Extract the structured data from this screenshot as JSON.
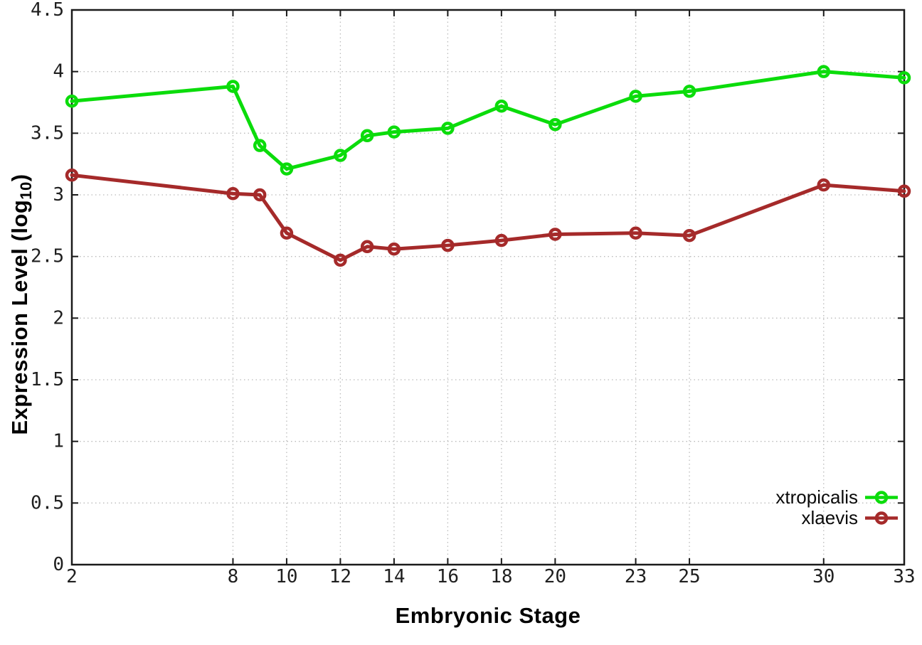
{
  "chart_data": {
    "type": "line",
    "title": "",
    "xlabel": "Embryonic Stage",
    "ylabel": "Expression Level (log10)",
    "ylabel_prefix": "Expression Level (log",
    "ylabel_subscript": "10",
    "ylabel_suffix": ")",
    "xlim": [
      2,
      33
    ],
    "ylim": [
      0,
      4.5
    ],
    "grid": true,
    "grid_style": "dotted",
    "legend_position": "bottom-right",
    "x_ticks": [
      2,
      8,
      10,
      12,
      14,
      16,
      18,
      20,
      23,
      25,
      30,
      33
    ],
    "x_tick_labels": [
      "2",
      "8",
      "10",
      "12",
      "14",
      "16",
      "18",
      "20",
      "23",
      "25",
      "30",
      "33"
    ],
    "y_ticks": [
      0,
      0.5,
      1,
      1.5,
      2,
      2.5,
      3,
      3.5,
      4,
      4.5
    ],
    "y_tick_labels": [
      "0",
      "0.5",
      "1",
      "1.5",
      "2",
      "2.5",
      "3",
      "3.5",
      "4",
      "4.5"
    ],
    "x": [
      2,
      8,
      9,
      10,
      12,
      13,
      14,
      16,
      18,
      20,
      23,
      25,
      30,
      33
    ],
    "series": [
      {
        "name": "xtropicalis",
        "color": "#0bdc0b",
        "marker": "open-circle",
        "values": [
          3.76,
          3.88,
          3.4,
          3.21,
          3.32,
          3.48,
          3.51,
          3.54,
          3.72,
          3.57,
          3.8,
          3.84,
          4.0,
          3.95
        ]
      },
      {
        "name": "xlaevis",
        "color": "#a52a2a",
        "marker": "open-circle",
        "values": [
          3.16,
          3.01,
          3.0,
          2.69,
          2.47,
          2.58,
          2.56,
          2.59,
          2.63,
          2.68,
          2.69,
          2.67,
          3.08,
          3.03
        ]
      }
    ],
    "colors": {
      "grid": "#bbbbbb",
      "border": "#1a1a1a",
      "tick_text": "#1f1f1f"
    }
  }
}
